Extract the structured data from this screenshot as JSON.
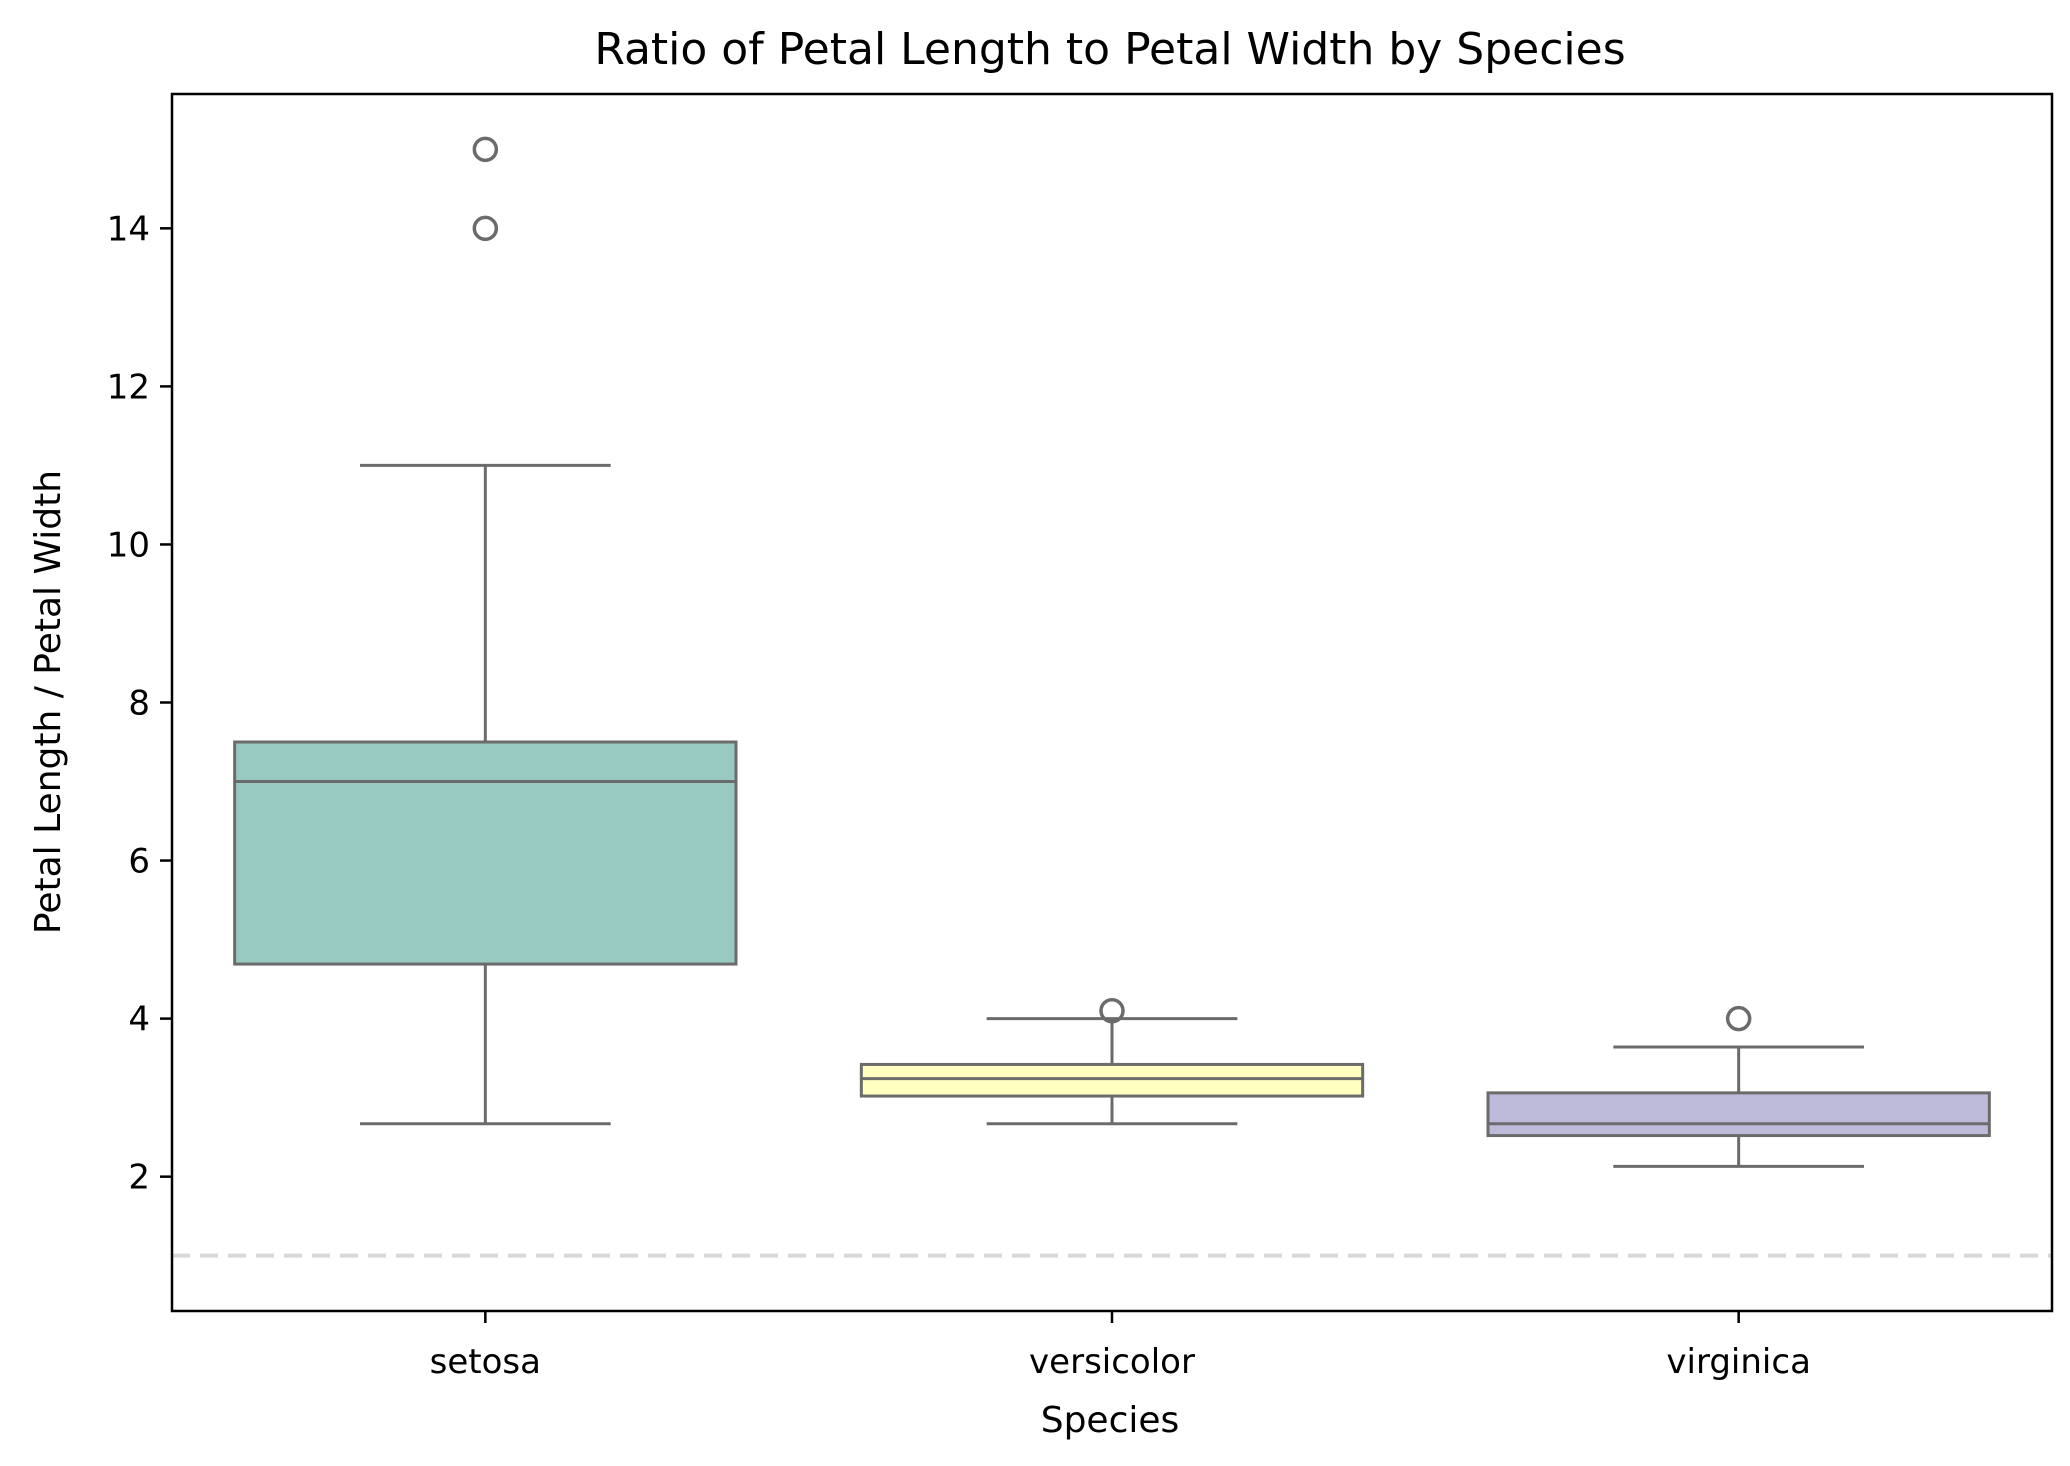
{
  "chart_data": {
    "type": "box",
    "title": "Ratio of Petal Length to Petal Width by Species",
    "xlabel": "Species",
    "ylabel": "Petal Length / Petal Width",
    "ylim": [
      0.3,
      15.7
    ],
    "yticks": [
      2,
      4,
      6,
      8,
      10,
      12,
      14
    ],
    "grid": false,
    "reference_line": {
      "y": 1.0,
      "style": "dashed",
      "color": "#d9d9d9"
    },
    "categories": [
      "setosa",
      "versicolor",
      "virginica"
    ],
    "boxes": [
      {
        "category": "setosa",
        "q1": 4.69,
        "median": 7.0,
        "q3": 7.5,
        "whisker_low": 2.67,
        "whisker_high": 11.0,
        "outliers": [
          14.0,
          15.0
        ],
        "color": "#99cac1"
      },
      {
        "category": "versicolor",
        "q1": 3.02,
        "median": 3.24,
        "q3": 3.42,
        "whisker_low": 2.67,
        "whisker_high": 4.0,
        "outliers": [
          4.1
        ],
        "color": "#ffffbf"
      },
      {
        "category": "virginica",
        "q1": 2.52,
        "median": 2.67,
        "q3": 3.06,
        "whisker_low": 2.13,
        "whisker_high": 3.64,
        "outliers": [
          4.0
        ],
        "color": "#bebada"
      }
    ],
    "line_color": "#6b6b6b"
  }
}
